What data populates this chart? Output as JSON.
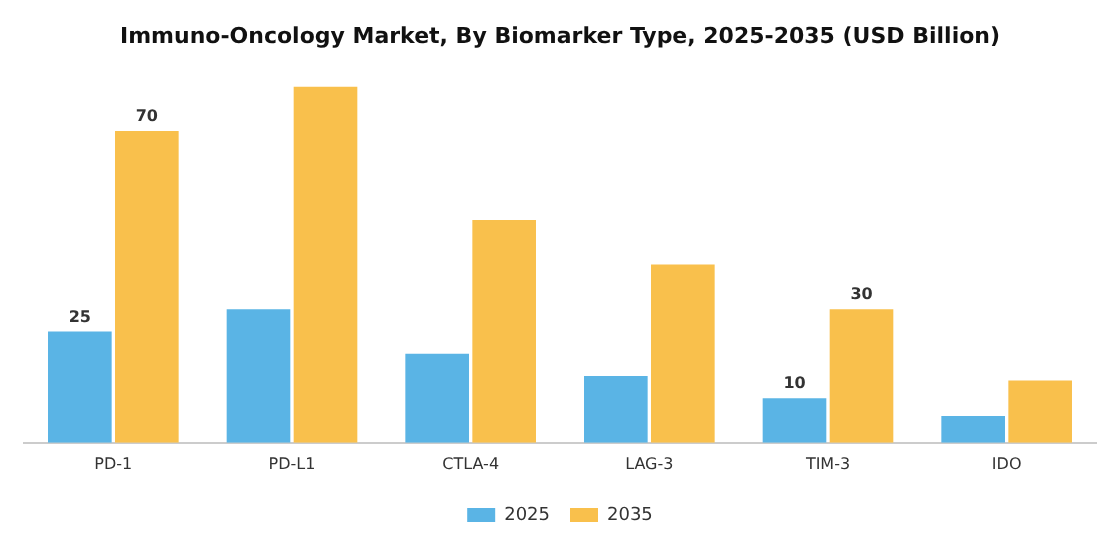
{
  "chart_data": {
    "type": "bar",
    "title": "Immuno-Oncology Market, By Biomarker Type, 2025-2035 (USD Billion)",
    "categories": [
      "PD-1",
      "PD-L1",
      "CTLA-4",
      "LAG-3",
      "TIM-3",
      "IDO"
    ],
    "series": [
      {
        "name": "2025",
        "color": "#5ab4e5",
        "values": [
          25,
          30,
          20,
          15,
          10,
          6
        ],
        "value_labels": [
          "25",
          null,
          null,
          null,
          "10",
          null
        ]
      },
      {
        "name": "2035",
        "color": "#f9c04c",
        "values": [
          70,
          80,
          50,
          40,
          30,
          14
        ],
        "value_labels": [
          "70",
          null,
          null,
          null,
          "30",
          null
        ]
      }
    ],
    "tick_labels": "x",
    "grid": false,
    "legend": "bottom"
  }
}
